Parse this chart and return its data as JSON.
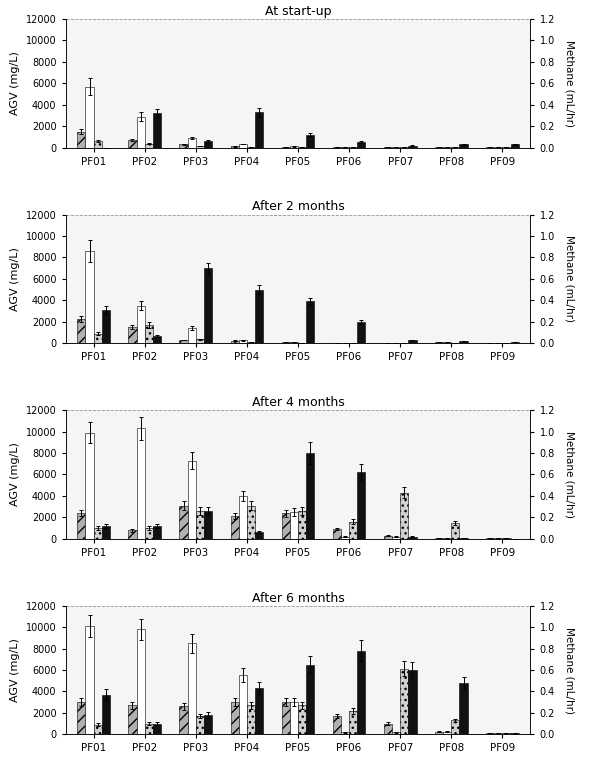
{
  "titles": [
    "At start-up",
    "After 2 months",
    "After 4 months",
    "After 6 months"
  ],
  "groups": [
    "PF01",
    "PF02",
    "PF03",
    "PF04",
    "PF05",
    "PF06",
    "PF07",
    "PF08",
    "PF09"
  ],
  "ylabel_left": "AGV (mg/L)",
  "ylabel_right": "Methane (mL/hr)",
  "ylim_left": [
    0,
    12000
  ],
  "ylim_right": [
    0,
    1.2
  ],
  "yticks_left": [
    0,
    2000,
    4000,
    6000,
    8000,
    10000,
    12000
  ],
  "yticks_right": [
    0.0,
    0.2,
    0.4,
    0.6,
    0.8,
    1.0,
    1.2
  ],
  "bar_width": 0.16,
  "panels": [
    {
      "title": "At start-up",
      "bar1": [
        1500,
        700,
        300,
        120,
        80,
        60,
        50,
        50,
        40
      ],
      "bar1_err": [
        200,
        100,
        40,
        15,
        10,
        8,
        8,
        8,
        6
      ],
      "bar2": [
        5700,
        2900,
        900,
        350,
        120,
        80,
        60,
        60,
        50
      ],
      "bar2_err": [
        800,
        400,
        120,
        40,
        15,
        10,
        8,
        8,
        8
      ],
      "bar3": [
        600,
        350,
        150,
        80,
        60,
        40,
        40,
        40,
        30
      ],
      "bar3_err": [
        80,
        50,
        20,
        10,
        8,
        6,
        6,
        6,
        5
      ],
      "bar4_methane": [
        0.0,
        0.32,
        0.06,
        0.33,
        0.12,
        0.05,
        0.02,
        0.03,
        0.03
      ],
      "bar4_err": [
        0.0,
        0.04,
        0.01,
        0.04,
        0.015,
        0.008,
        0.003,
        0.004,
        0.004
      ]
    },
    {
      "title": "After 2 months",
      "bar1": [
        2300,
        1500,
        300,
        250,
        80,
        40,
        60,
        80,
        50
      ],
      "bar1_err": [
        280,
        200,
        40,
        30,
        10,
        6,
        8,
        10,
        8
      ],
      "bar2": [
        8600,
        3500,
        1400,
        280,
        80,
        40,
        60,
        80,
        50
      ],
      "bar2_err": [
        1000,
        400,
        180,
        40,
        10,
        6,
        8,
        10,
        8
      ],
      "bar3": [
        900,
        1700,
        350,
        80,
        60,
        30,
        40,
        40,
        30
      ],
      "bar3_err": [
        120,
        250,
        50,
        10,
        8,
        5,
        6,
        6,
        5
      ],
      "bar4_methane": [
        0.31,
        0.07,
        0.7,
        0.5,
        0.39,
        0.2,
        0.03,
        0.02,
        0.01
      ],
      "bar4_err": [
        0.04,
        0.01,
        0.05,
        0.04,
        0.03,
        0.02,
        0.004,
        0.003,
        0.002
      ]
    },
    {
      "title": "After 4 months",
      "bar1": [
        2400,
        800,
        3100,
        2100,
        2400,
        900,
        300,
        100,
        50
      ],
      "bar1_err": [
        300,
        120,
        400,
        280,
        320,
        120,
        40,
        15,
        8
      ],
      "bar2": [
        9900,
        10300,
        7300,
        4000,
        2500,
        200,
        200,
        100,
        50
      ],
      "bar2_err": [
        1000,
        1100,
        800,
        500,
        350,
        25,
        25,
        15,
        8
      ],
      "bar3": [
        1000,
        1000,
        2600,
        3100,
        2600,
        1600,
        4300,
        1500,
        80
      ],
      "bar3_err": [
        150,
        150,
        350,
        400,
        350,
        250,
        500,
        200,
        12
      ],
      "bar4_methane": [
        0.12,
        0.12,
        0.26,
        0.06,
        0.8,
        0.62,
        0.02,
        0.01,
        0.0
      ],
      "bar4_err": [
        0.02,
        0.02,
        0.04,
        0.01,
        0.1,
        0.08,
        0.003,
        0.002,
        0.001
      ]
    },
    {
      "title": "After 6 months",
      "bar1": [
        3000,
        2700,
        2600,
        3000,
        3000,
        1700,
        1000,
        250,
        100
      ],
      "bar1_err": [
        350,
        320,
        320,
        380,
        350,
        220,
        130,
        35,
        15
      ],
      "bar2": [
        10100,
        9800,
        8500,
        5500,
        3000,
        200,
        200,
        250,
        100
      ],
      "bar2_err": [
        1000,
        1000,
        900,
        650,
        400,
        30,
        30,
        35,
        15
      ],
      "bar3": [
        900,
        1000,
        1700,
        2700,
        2700,
        2200,
        6100,
        1300,
        100
      ],
      "bar3_err": [
        120,
        130,
        220,
        340,
        340,
        280,
        700,
        170,
        15
      ],
      "bar4_methane": [
        0.37,
        0.1,
        0.18,
        0.43,
        0.65,
        0.78,
        0.6,
        0.48,
        0.01
      ],
      "bar4_err": [
        0.05,
        0.015,
        0.025,
        0.055,
        0.08,
        0.1,
        0.075,
        0.055,
        0.002
      ]
    }
  ],
  "colors": {
    "bar1": "#b0b0b0",
    "bar2": "#ffffff",
    "bar3": "#d0d0d0",
    "bar4": "#111111"
  },
  "hatch1": "///",
  "hatch3": "...",
  "edgecolor": "#000000",
  "figsize": [
    5.96,
    7.61
  ],
  "dpi": 100
}
